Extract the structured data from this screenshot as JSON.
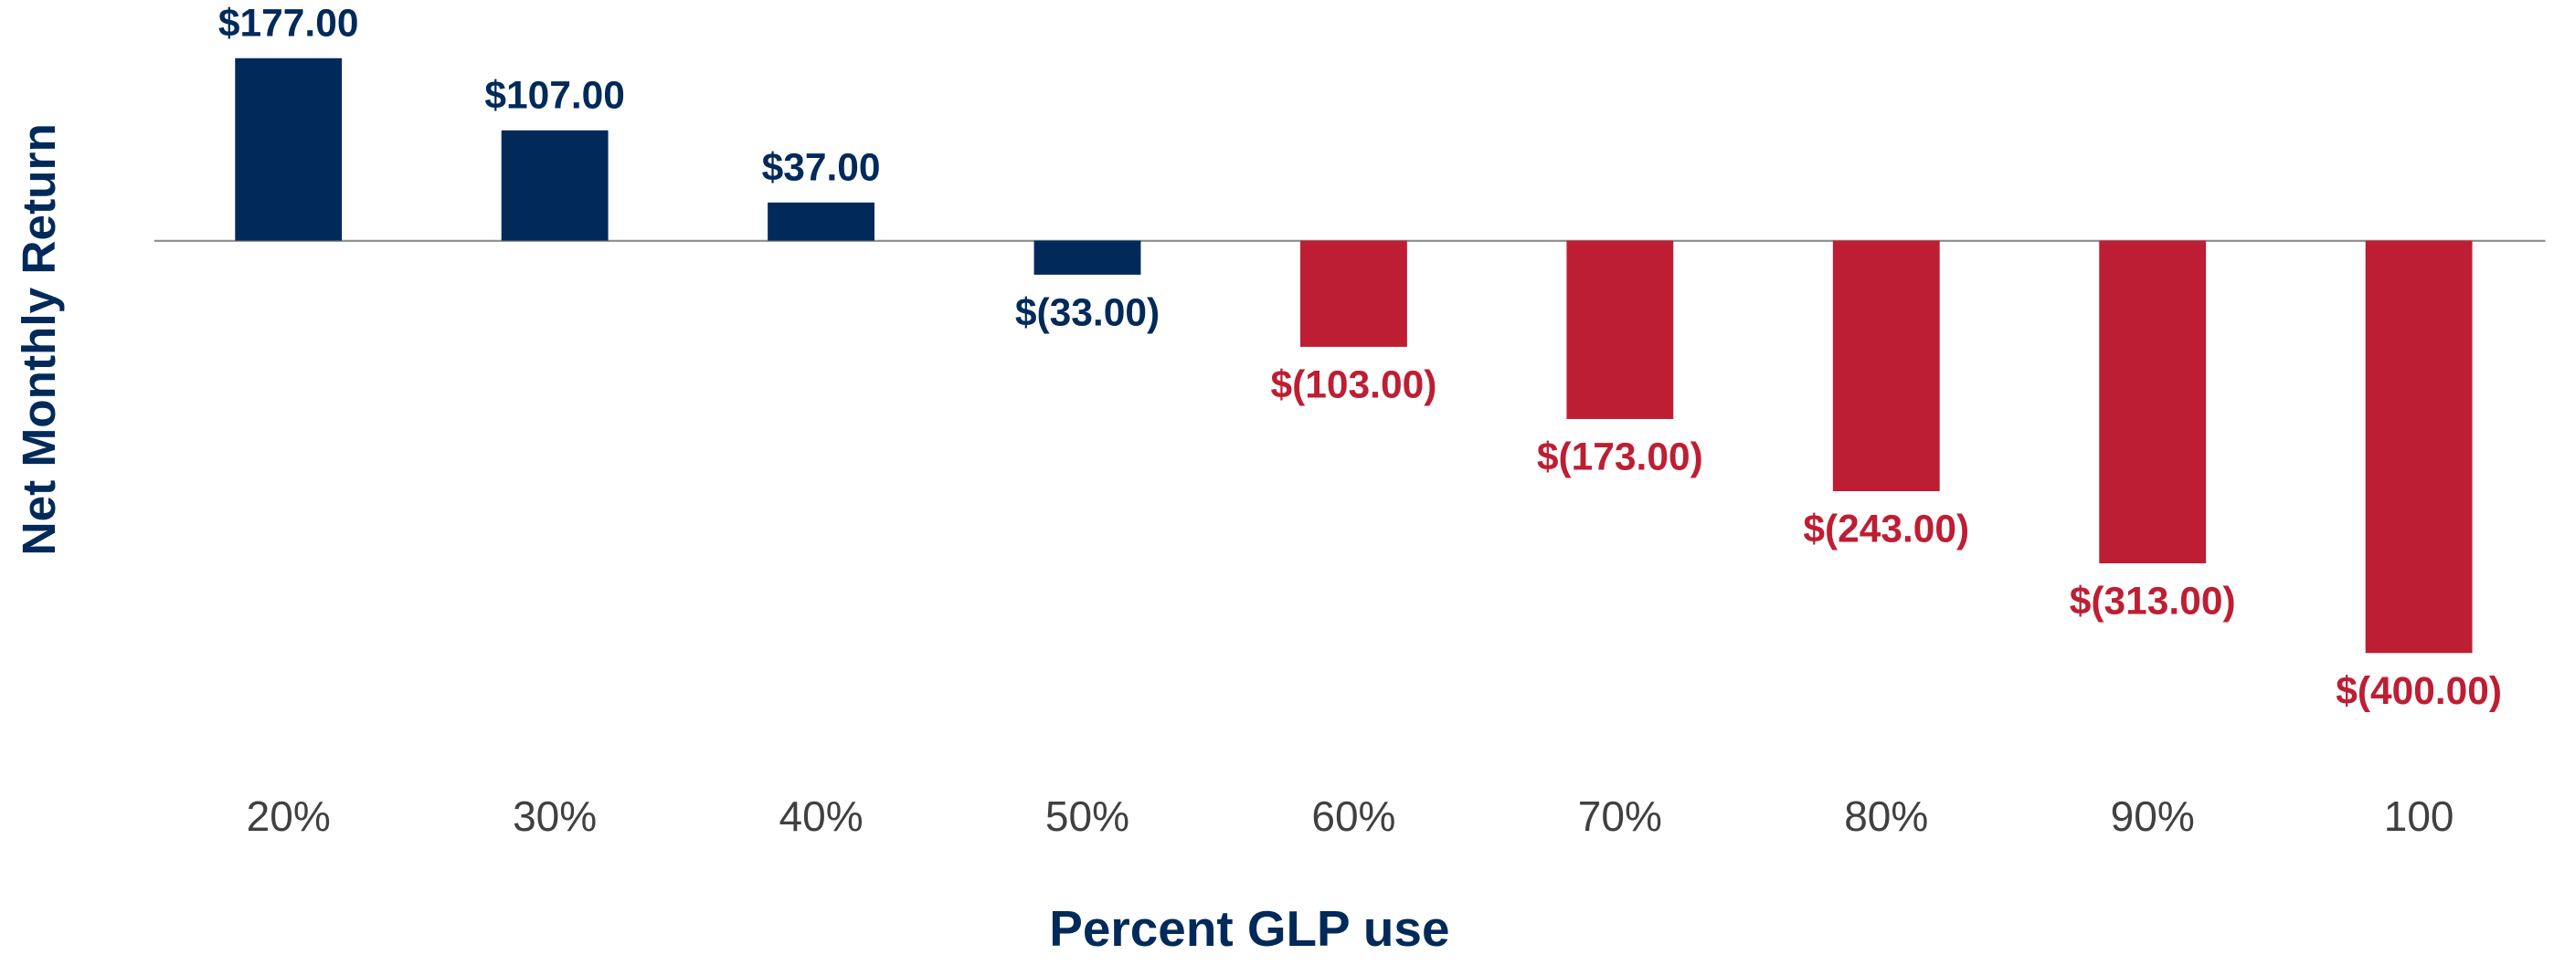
{
  "chart_data": {
    "type": "bar",
    "x_label": "Percent GLP use",
    "y_label": "Net Monthly Return",
    "categories": [
      "20%",
      "30%",
      "40%",
      "50%",
      "60%",
      "70%",
      "80%",
      "90%",
      "100"
    ],
    "values": [
      177,
      107,
      37,
      -33,
      -103,
      -173,
      -243,
      -313,
      -400
    ],
    "value_labels": [
      "$177.00",
      "$107.00",
      "$37.00",
      "$(33.00)",
      "$(103.00)",
      "$(173.00)",
      "$(243.00)",
      "$(313.00)",
      "$(400.00)"
    ],
    "colors": [
      "#012a5a",
      "#012a5a",
      "#012a5a",
      "#012a5a",
      "#be1e33",
      "#be1e33",
      "#be1e33",
      "#be1e33",
      "#be1e33"
    ]
  }
}
